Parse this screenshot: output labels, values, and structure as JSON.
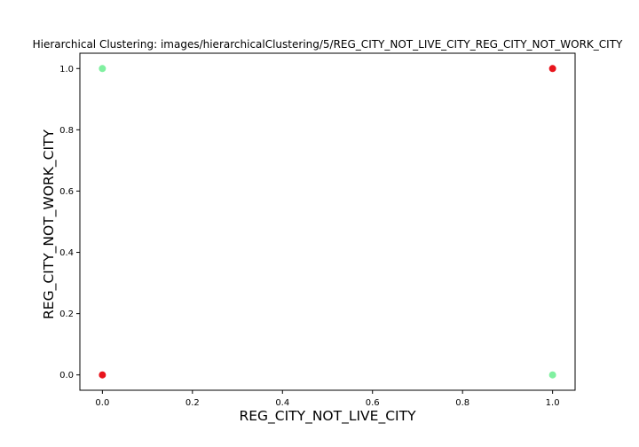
{
  "chart_data": {
    "type": "scatter",
    "title": "Hierarchical Clustering: images/hierarchicalClustering/5/REG_CITY_NOT_LIVE_CITY_REG_CITY_NOT_WORK_CITY",
    "xlabel": "REG_CITY_NOT_LIVE_CITY",
    "ylabel": "REG_CITY_NOT_WORK_CITY",
    "xlim": [
      -0.05,
      1.05
    ],
    "ylim": [
      -0.05,
      1.05
    ],
    "xticks": [
      0.0,
      0.2,
      0.4,
      0.6,
      0.8,
      1.0
    ],
    "yticks": [
      0.0,
      0.2,
      0.4,
      0.6,
      0.8,
      1.0
    ],
    "xtick_labels": [
      "0.0",
      "0.2",
      "0.4",
      "0.6",
      "0.8",
      "1.0"
    ],
    "ytick_labels": [
      "0.0",
      "0.2",
      "0.4",
      "0.6",
      "0.8",
      "1.0"
    ],
    "grid": false,
    "points": [
      {
        "x": 0.0,
        "y": 1.0,
        "color": "#80f0a0"
      },
      {
        "x": 1.0,
        "y": 1.0,
        "color": "#e8141c"
      },
      {
        "x": 0.0,
        "y": 0.0,
        "color": "#e8141c"
      },
      {
        "x": 1.0,
        "y": 0.0,
        "color": "#80f0a0"
      }
    ]
  }
}
